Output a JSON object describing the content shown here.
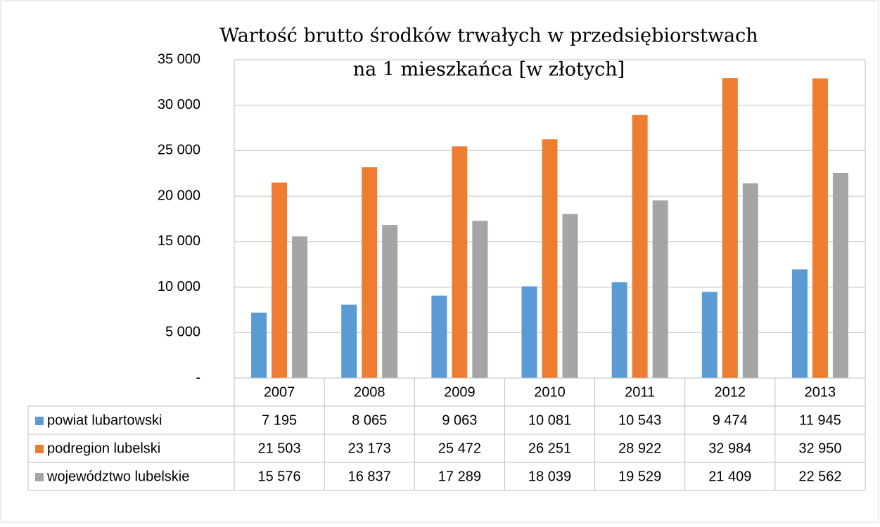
{
  "chart_data": {
    "type": "bar",
    "title": [
      "Wartość brutto środków trwałych w przedsiębiorstwach",
      "na 1 mieszkańca [w złotych]"
    ],
    "categories": [
      "2007",
      "2008",
      "2009",
      "2010",
      "2011",
      "2012",
      "2013"
    ],
    "series": [
      {
        "name": "powiat lubartowski",
        "color": "#5b9bd5",
        "values": [
          7195,
          8065,
          9063,
          10081,
          10543,
          9474,
          11945
        ],
        "value_labels": [
          "7 195",
          "8 065",
          "9 063",
          "10 081",
          "10 543",
          "9 474",
          "11 945"
        ]
      },
      {
        "name": "podregion lubelski",
        "color": "#ed7d31",
        "values": [
          21503,
          23173,
          25472,
          26251,
          28922,
          32984,
          32950
        ],
        "value_labels": [
          "21 503",
          "23 173",
          "25 472",
          "26 251",
          "28 922",
          "32 984",
          "32 950"
        ]
      },
      {
        "name": "województwo lubelskie",
        "color": "#a5a5a5",
        "values": [
          15576,
          16837,
          17289,
          18039,
          19529,
          21409,
          22562
        ],
        "value_labels": [
          "15 576",
          "16 837",
          "17 289",
          "18 039",
          "19 529",
          "21 409",
          "22 562"
        ]
      }
    ],
    "ylim": [
      0,
      35000
    ],
    "yticks": [
      {
        "value": 0,
        "label": "-"
      },
      {
        "value": 5000,
        "label": "5 000"
      },
      {
        "value": 10000,
        "label": "10 000"
      },
      {
        "value": 15000,
        "label": "15 000"
      },
      {
        "value": 20000,
        "label": "20 000"
      },
      {
        "value": 25000,
        "label": "25 000"
      },
      {
        "value": 30000,
        "label": "30 000"
      },
      {
        "value": 35000,
        "label": "35 000"
      }
    ],
    "grid": true
  }
}
